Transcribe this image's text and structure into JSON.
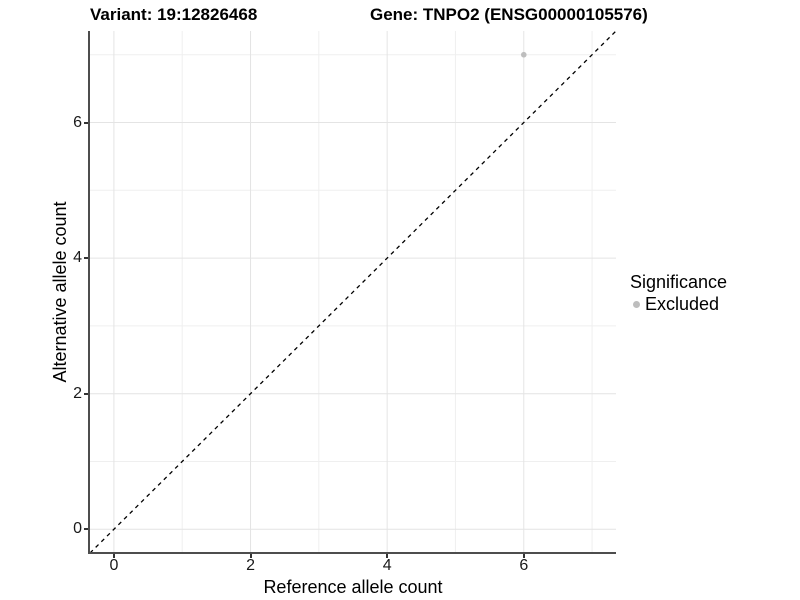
{
  "titles": {
    "left": "Variant: 19:12826468",
    "right": "Gene: TNPO2 (ENSG00000105576)"
  },
  "chart_data": {
    "type": "scatter",
    "xlabel": "Reference allele count",
    "ylabel": "Alternative allele count",
    "xlim": [
      -0.35,
      7.35
    ],
    "ylim": [
      -0.35,
      7.35
    ],
    "x_major_ticks": [
      0,
      2,
      4,
      6
    ],
    "y_major_ticks": [
      0,
      2,
      4,
      6
    ],
    "x_minor_gridlines": [
      1,
      3,
      5,
      7
    ],
    "y_minor_gridlines": [
      1,
      3,
      5,
      7
    ],
    "grid": "major+minor",
    "points": [
      {
        "x": 6,
        "y": 7,
        "series": "Excluded"
      }
    ],
    "reference_line": {
      "type": "identity",
      "slope": 1,
      "intercept": 0,
      "style": "dashed",
      "color": "#000000"
    },
    "legend": {
      "title": "Significance",
      "position": "right",
      "items": [
        {
          "label": "Excluded",
          "color": "#bebebe"
        }
      ]
    },
    "colors": {
      "point": "#bebebe",
      "grid_major": "#e4e4e4",
      "grid_minor": "#efefef",
      "axis_line": "#4d4d4d",
      "tick_mark": "#333333",
      "text": "#1a1a1a",
      "background": "#ffffff"
    }
  }
}
